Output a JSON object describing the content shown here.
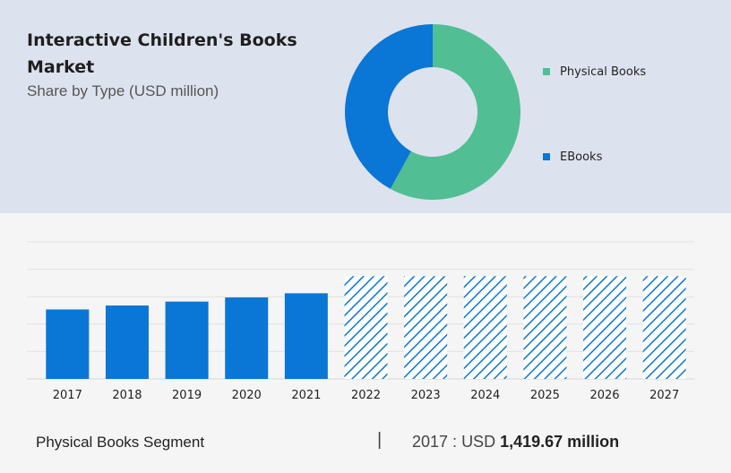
{
  "header": {
    "title": "Interactive Children's Books Market",
    "subtitle": "Share by Type (USD million)"
  },
  "legend": [
    {
      "label": "Physical Books",
      "color": "#52be94"
    },
    {
      "label": "EBooks",
      "color": "#0a76d6"
    }
  ],
  "footer": {
    "segment": "Physical Books Segment",
    "separator": "|",
    "year_label": "2017 :",
    "currency": "USD",
    "value_text": "1,419.67 million"
  },
  "chart_data": [
    {
      "type": "pie",
      "title": "Share by Type (USD million)",
      "labels": [
        "Physical Books",
        "EBooks"
      ],
      "values": [
        58,
        42
      ],
      "colors": [
        "#52be94",
        "#0a76d6"
      ],
      "donut": true
    },
    {
      "type": "bar",
      "categories": [
        "2017",
        "2018",
        "2019",
        "2020",
        "2021",
        "2022",
        "2023",
        "2024",
        "2025",
        "2026",
        "2027"
      ],
      "values": [
        1419.67,
        1500,
        1580,
        1665,
        1750,
        null,
        null,
        null,
        null,
        null,
        null
      ],
      "forecast_categories": [
        "2022",
        "2023",
        "2024",
        "2025",
        "2026",
        "2027"
      ],
      "color": "#0a76d6",
      "grid": true,
      "ylim": [
        0,
        2800
      ]
    }
  ]
}
